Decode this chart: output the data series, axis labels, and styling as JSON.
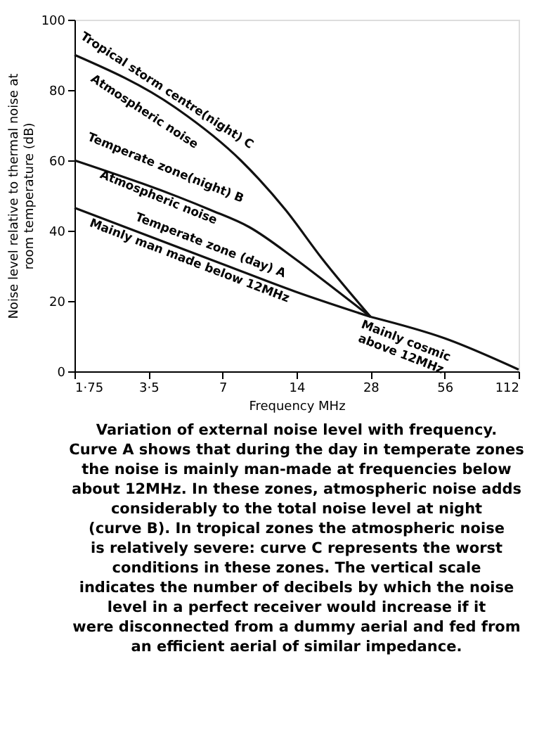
{
  "chart_data": {
    "type": "line",
    "xlabel": "Frequency MHz",
    "ylabel": "Noise level relative to thermal noise at room temperature (dB)",
    "log": "x",
    "xlim": [
      1.75,
      112
    ],
    "xticks": [
      {
        "value": 1.75,
        "label": "1·75"
      },
      {
        "value": 3.5,
        "label": "3·5"
      },
      7,
      14,
      28,
      56,
      112
    ],
    "ylim": [
      0,
      100
    ],
    "yticks": [
      0,
      20,
      40,
      60,
      80,
      100
    ],
    "grid": false,
    "marker": "none",
    "line_style": "solid",
    "series": [
      {
        "color": "#111111",
        "x": [
          1.75,
          4.5,
          8.3,
          12.6,
          17.8,
          28
        ],
        "values": [
          90,
          75,
          60,
          46,
          32,
          15.5
        ]
      },
      {
        "color": "#111111",
        "x": [
          1.75,
          6.2,
          9,
          13.8,
          19.1,
          28
        ],
        "values": [
          60,
          46,
          41,
          32,
          24.5,
          15.5
        ]
      },
      {
        "color": "#111111",
        "x": [
          1.75,
          7,
          13.8,
          28
        ],
        "values": [
          46.5,
          30.5,
          22.7,
          15.5
        ]
      },
      {
        "color": "#111111",
        "x": [
          28,
          56,
          112
        ],
        "values": [
          15.5,
          9.4,
          0.5
        ]
      }
    ],
    "annotations": [
      "Tropical storm centre(night) C",
      "Atmospheric noise",
      "Temperate zone(night) B",
      "Atmospheric noise",
      "Temperate zone (day) A",
      "Mainly man made below 12MHz",
      "Mainly cosmic above 12MHz",
      "Variation of external noise level with frequency. Curve A shows that during the day in temperate zones the noise is mainly man-made at frequencies below about 12MHz. In these zones, atmospheric noise adds considerably to the total noise level at night (curve B). In tropical zones the atmospheric noise is relatively severe: curve C represents the worst conditions in these zones. The vertical scale indicates the number of decibels by which the noise level in a perfect receiver would increase if it were disconnected from a dummy aerial and fed from an efficient aerial of similar impedance."
    ]
  }
}
